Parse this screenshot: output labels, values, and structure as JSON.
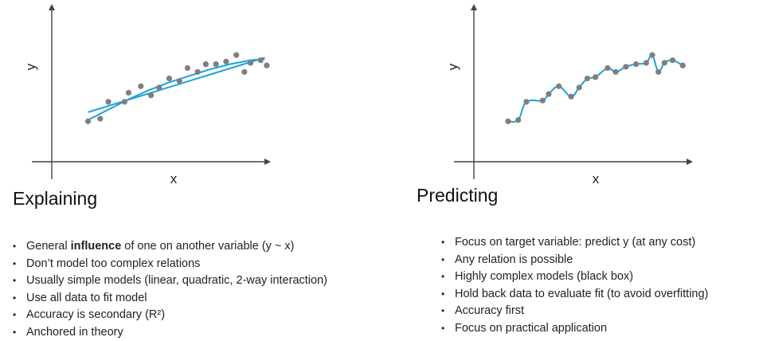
{
  "chart_data": [
    {
      "type": "scatter",
      "title": "",
      "xlabel": "x",
      "ylabel": "y",
      "xlim": [
        0,
        10
      ],
      "ylim": [
        0,
        10
      ],
      "grid": false,
      "series": [
        {
          "kind": "points",
          "x": [
            1.0,
            1.6,
            2.0,
            2.8,
            3.0,
            3.6,
            4.1,
            4.5,
            5.0,
            5.5,
            5.9,
            6.4,
            6.8,
            7.3,
            7.8,
            8.3,
            8.7,
            9.0,
            9.5,
            9.8
          ],
          "y": [
            2.5,
            2.7,
            4.0,
            4.0,
            4.7,
            5.2,
            4.5,
            5.1,
            5.8,
            5.6,
            6.6,
            6.3,
            6.9,
            6.9,
            7.1,
            7.6,
            6.3,
            7.0,
            7.2,
            6.8
          ]
        },
        {
          "kind": "linear-fit",
          "x": [
            1.0,
            9.7
          ],
          "y": [
            3.2,
            7.4
          ]
        },
        {
          "kind": "quadratic-fit",
          "x": [
            1.0,
            2.0,
            3.0,
            4.0,
            5.0,
            6.0,
            7.0,
            8.0,
            9.0,
            9.7
          ],
          "y": [
            2.6,
            3.4,
            4.2,
            4.9,
            5.5,
            6.0,
            6.5,
            6.9,
            7.2,
            7.3
          ]
        }
      ],
      "colors": {
        "points": "#7f7f7f",
        "fit": "#1ba3d8",
        "axis": "#444444"
      }
    },
    {
      "type": "scatter",
      "title": "",
      "xlabel": "x",
      "ylabel": "y",
      "xlim": [
        0,
        10
      ],
      "ylim": [
        0,
        10
      ],
      "grid": false,
      "series": [
        {
          "kind": "points",
          "x": [
            0.9,
            1.4,
            1.8,
            2.6,
            2.9,
            3.4,
            4.0,
            4.4,
            4.8,
            5.2,
            5.8,
            6.2,
            6.7,
            7.2,
            7.7,
            8.0,
            8.3,
            8.6,
            9.0,
            9.5
          ],
          "y": [
            2.5,
            2.6,
            4.0,
            4.1,
            4.6,
            5.2,
            4.4,
            5.1,
            5.8,
            5.9,
            6.6,
            6.3,
            6.7,
            6.9,
            7.0,
            7.6,
            6.3,
            7.0,
            7.2,
            6.8
          ]
        },
        {
          "kind": "overfit-curve",
          "x": [
            0.9,
            1.4,
            1.8,
            2.6,
            2.9,
            3.4,
            4.0,
            4.4,
            4.8,
            5.2,
            5.8,
            6.2,
            6.7,
            7.2,
            7.7,
            8.0,
            8.3,
            8.6,
            9.0,
            9.5
          ],
          "y": [
            2.5,
            2.6,
            4.0,
            4.1,
            4.6,
            5.2,
            4.4,
            5.1,
            5.8,
            5.9,
            6.6,
            6.3,
            6.7,
            6.9,
            7.0,
            7.6,
            6.3,
            7.0,
            7.2,
            6.8
          ]
        }
      ],
      "colors": {
        "points": "#7f7f7f",
        "fit": "#1ba3d8",
        "axis": "#444444"
      }
    }
  ],
  "left": {
    "heading": "Explaining",
    "bullets": [
      {
        "pre": "General ",
        "bold": "influence",
        "post": " of one on another variable (y ~ x)"
      },
      {
        "pre": "Don’t model too complex relations",
        "bold": "",
        "post": ""
      },
      {
        "pre": "Usually simple models (linear, quadratic, 2-way interaction)",
        "bold": "",
        "post": ""
      },
      {
        "pre": "Use all data to fit model",
        "bold": "",
        "post": ""
      },
      {
        "pre": "Accuracy is secondary (R²)",
        "bold": "",
        "post": ""
      },
      {
        "pre": "Anchored in theory",
        "bold": "",
        "post": ""
      }
    ]
  },
  "right": {
    "heading": "Predicting",
    "bullets": [
      {
        "pre": "Focus on target variable: predict y (at any cost)",
        "bold": "",
        "post": ""
      },
      {
        "pre": "Any relation is possible",
        "bold": "",
        "post": ""
      },
      {
        "pre": "Highly complex models (black box)",
        "bold": "",
        "post": ""
      },
      {
        "pre": "Hold back data to evaluate fit (to avoid overfitting)",
        "bold": "",
        "post": ""
      },
      {
        "pre": "Accuracy first",
        "bold": "",
        "post": ""
      },
      {
        "pre": "Focus on practical application",
        "bold": "",
        "post": ""
      }
    ]
  }
}
